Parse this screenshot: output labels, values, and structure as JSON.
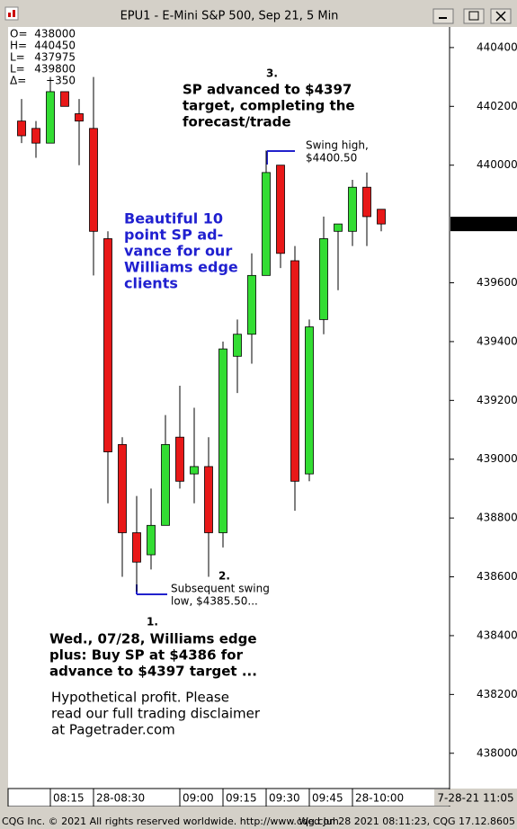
{
  "chart_data": {
    "type": "candlestick",
    "title": "EPU1 - E-Mini S&P 500, Sep 21, 5 Min",
    "categories": [
      null,
      null,
      "08:15",
      null,
      null,
      "28-08:30",
      null,
      null,
      null,
      null,
      null,
      "09:00",
      null,
      null,
      "09:15",
      null,
      null,
      "09:30",
      null,
      null,
      "09:45",
      null,
      null,
      "28-10:00",
      null,
      null
    ],
    "open": [
      440150,
      440125,
      440075,
      440250,
      440175,
      440125,
      439750,
      439050,
      438750,
      438675,
      438775,
      439075,
      438950,
      438975,
      438750,
      439350,
      439425,
      439625,
      440000,
      439675,
      438950,
      439475,
      439775,
      439775,
      439925,
      439850
    ],
    "high": [
      440225,
      440150,
      440300,
      440250,
      440225,
      440300,
      439775,
      439075,
      438875,
      438900,
      439150,
      439250,
      439175,
      439075,
      439400,
      439475,
      439700,
      440050,
      440000,
      439725,
      439475,
      439825,
      439800,
      439950,
      439975,
      439850
    ],
    "low": [
      440075,
      440025,
      440075,
      440200,
      440000,
      439625,
      438850,
      438600,
      438550,
      438625,
      438775,
      438900,
      438850,
      438600,
      438700,
      439225,
      439325,
      439625,
      439650,
      438825,
      438925,
      439425,
      439575,
      439725,
      439725,
      439775
    ],
    "close": [
      440100,
      440075,
      440250,
      440200,
      440150,
      439775,
      439025,
      438750,
      438650,
      438775,
      439050,
      438925,
      438975,
      438750,
      439375,
      439425,
      439625,
      439975,
      439700,
      438925,
      439450,
      439750,
      439800,
      439925,
      439825,
      439800
    ],
    "up_color": "#33dd33",
    "down_color": "#e81818",
    "ylim": [
      437880,
      440470
    ],
    "yticks": [
      440400,
      440200,
      440000,
      439600,
      439400,
      439200,
      439000,
      438800,
      438600,
      438400,
      438200,
      438000
    ],
    "last_price": 439800,
    "date_label": "7-28-21 11:05",
    "info": [
      {
        "label": "O=",
        "value": "438000"
      },
      {
        "label": "H=",
        "value": "440450"
      },
      {
        "label": "L=",
        "value": "437975"
      },
      {
        "label": "L=",
        "value": "439800"
      },
      {
        "label": "Δ=",
        "value": "+350"
      }
    ],
    "annotations": [
      {
        "style": "bold",
        "lines": [
          "3."
        ]
      },
      {
        "style": "bold",
        "lines": [
          "SP advanced to $4397",
          "target, completing the",
          "forecast/trade"
        ]
      },
      {
        "style": "normal",
        "lines": [
          "Swing high,",
          "$4400.50"
        ]
      },
      {
        "style": "blue",
        "lines": [
          "Beautiful 10",
          "point SP ad-",
          "vance for our",
          "Williams edge",
          "clients"
        ]
      },
      {
        "style": "bold",
        "lines": [
          "2."
        ]
      },
      {
        "style": "normal",
        "lines": [
          "Subsequent swing",
          "low, $4385.50..."
        ]
      },
      {
        "style": "bold",
        "lines": [
          "1."
        ]
      },
      {
        "style": "bold",
        "lines": [
          "Wed., 07/28, Williams edge",
          "plus: Buy SP at $4386 for",
          "advance to $4397 target ..."
        ]
      },
      {
        "style": "plain",
        "lines": [
          "Hypothetical profit. Please",
          "read our full trading disclaimer",
          "at Pagetrader.com"
        ]
      }
    ],
    "footer_left": "CQG Inc. © 2021 All rights reserved worldwide. http://www.cqg.com",
    "footer_right": "Wed Jul 28 2021 08:11:23, CQG 17.12.8605"
  }
}
